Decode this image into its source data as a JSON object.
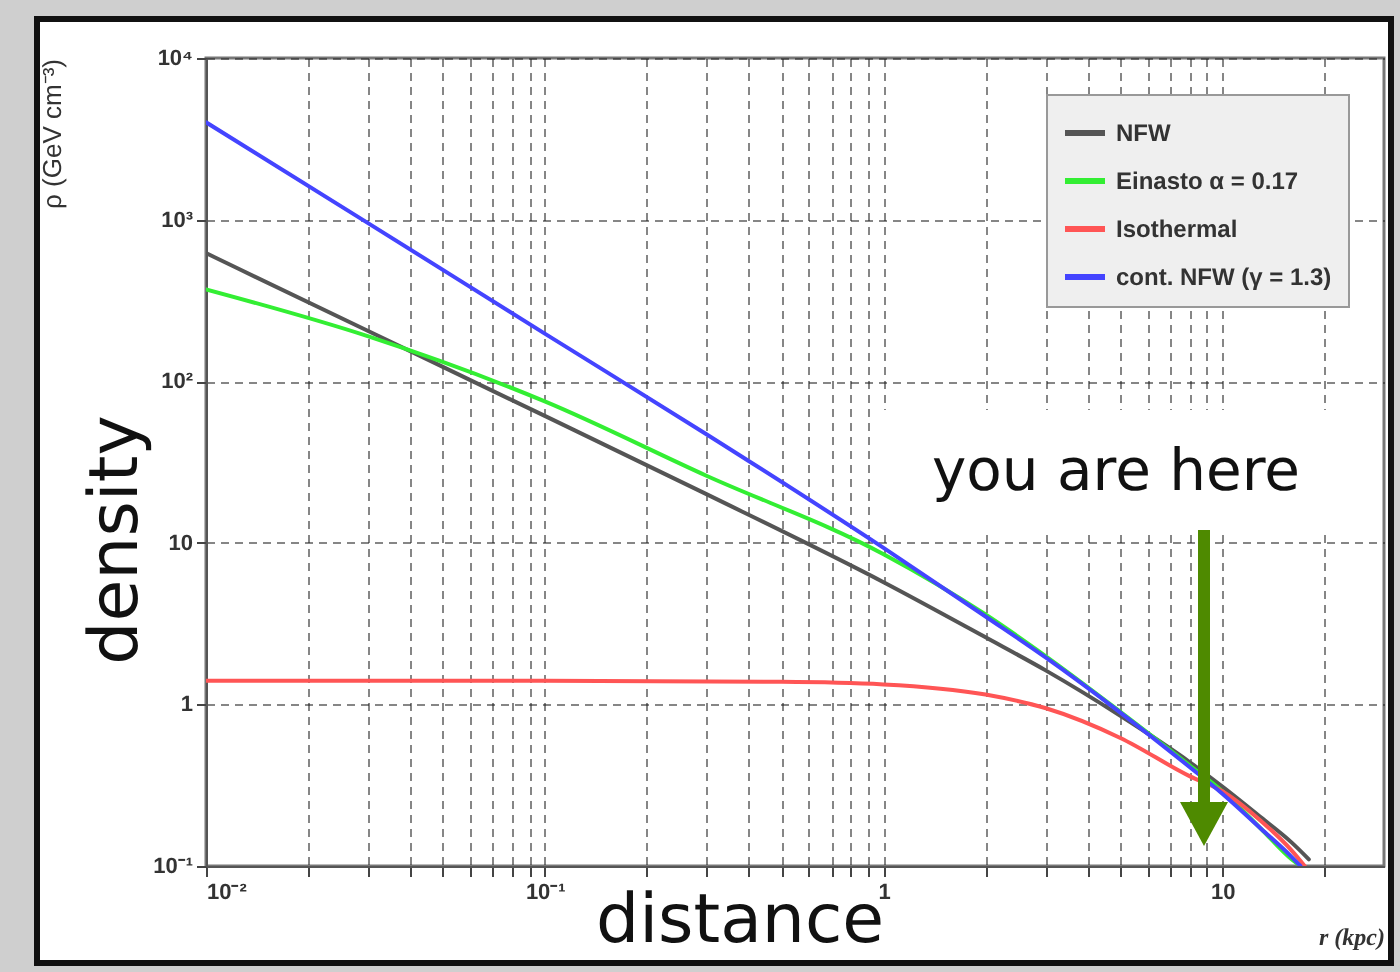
{
  "chart_data": {
    "type": "line",
    "xlabel": "r (kpc)",
    "ylabel": "ρ (GeV cm⁻³)",
    "log": "xy",
    "grid": true,
    "legend": "top right",
    "line_style": "solid",
    "marker": "none",
    "xlim": [
      0.01,
      30
    ],
    "xticks": [
      {
        "value": 0.01,
        "label": "10⁻²"
      },
      {
        "value": 0.02,
        "label": null
      },
      {
        "value": 0.03,
        "label": null
      },
      {
        "value": 0.04,
        "label": null
      },
      {
        "value": 0.05,
        "label": null
      },
      {
        "value": 0.06,
        "label": null
      },
      {
        "value": 0.07,
        "label": null
      },
      {
        "value": 0.08,
        "label": null
      },
      {
        "value": 0.09,
        "label": null
      },
      {
        "value": 0.1,
        "label": "10⁻¹"
      },
      {
        "value": 0.2,
        "label": null
      },
      {
        "value": 0.3,
        "label": null
      },
      {
        "value": 0.4,
        "label": null
      },
      {
        "value": 0.5,
        "label": null
      },
      {
        "value": 0.6,
        "label": null
      },
      {
        "value": 0.7,
        "label": null
      },
      {
        "value": 0.8,
        "label": null
      },
      {
        "value": 0.9,
        "label": null
      },
      1,
      {
        "value": 2,
        "label": null
      },
      {
        "value": 3,
        "label": null
      },
      {
        "value": 4,
        "label": null
      },
      {
        "value": 5,
        "label": null
      },
      {
        "value": 6,
        "label": null
      },
      {
        "value": 7,
        "label": null
      },
      {
        "value": 8,
        "label": null
      },
      {
        "value": 9,
        "label": null
      },
      10,
      {
        "value": 20,
        "label": null
      }
    ],
    "ylim": [
      0.1,
      10000
    ],
    "yticks": [
      {
        "value": 0.1,
        "label": "10⁻¹"
      },
      1,
      10,
      {
        "value": 100,
        "label": "10²"
      },
      {
        "value": 1000,
        "label": "10³"
      },
      {
        "value": 10000,
        "label": "10⁴"
      }
    ],
    "series": [
      {
        "name": "NFW",
        "color": "#555555",
        "x": [
          0.01,
          0.03,
          0.1,
          0.3,
          1,
          2,
          3,
          5,
          8,
          10,
          13,
          16,
          18
        ],
        "values": [
          620,
          205,
          61,
          20,
          5.7,
          2.6,
          1.63,
          0.85,
          0.44,
          0.31,
          0.2,
          0.14,
          0.11
        ]
      },
      {
        "name": "Einasto α = 0.17",
        "color": "#33ee33",
        "x": [
          0.01,
          0.03,
          0.1,
          0.3,
          1,
          2,
          3,
          5,
          8,
          10,
          13,
          16,
          17
        ],
        "values": [
          370,
          190,
          75,
          26,
          8.5,
          3.6,
          2.0,
          0.9,
          0.42,
          0.29,
          0.17,
          0.11,
          0.1
        ]
      },
      {
        "name": "Isothermal",
        "color": "#ff5555",
        "x": [
          0.01,
          0.1,
          0.5,
          1,
          2,
          3,
          5,
          8,
          10,
          13,
          16,
          17.5
        ],
        "values": [
          1.4,
          1.4,
          1.38,
          1.33,
          1.15,
          0.95,
          0.62,
          0.36,
          0.29,
          0.19,
          0.125,
          0.1
        ]
      },
      {
        "name": "cont. NFW (γ = 1.3)",
        "color": "#4444ff",
        "x": [
          0.01,
          0.03,
          0.1,
          0.3,
          1,
          2,
          3,
          5,
          8,
          10,
          13,
          16,
          17
        ],
        "values": [
          4000,
          955,
          197,
          47,
          9.3,
          3.5,
          1.96,
          0.89,
          0.41,
          0.28,
          0.17,
          0.114,
          0.1
        ]
      }
    ],
    "annotations": [
      "you are here",
      "density",
      "distance"
    ]
  }
}
